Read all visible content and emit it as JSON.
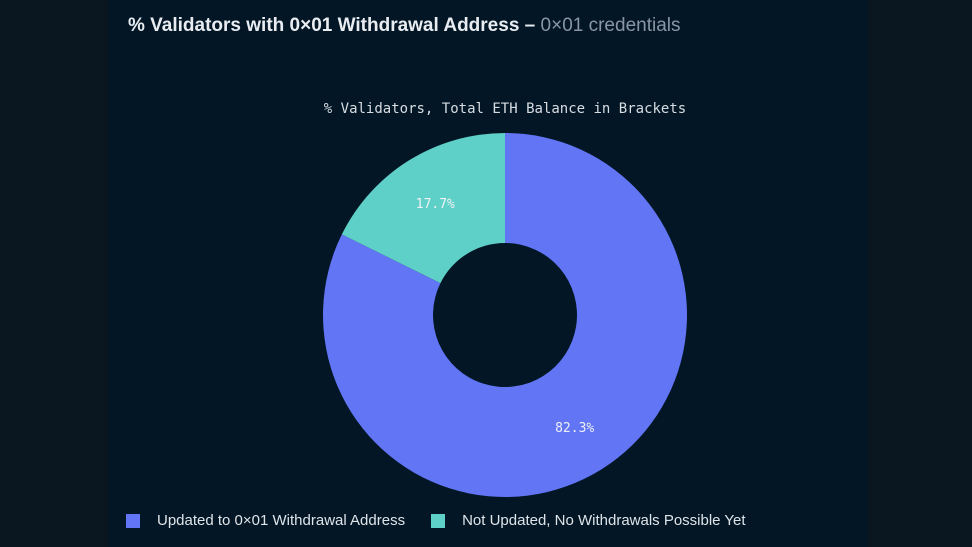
{
  "title": {
    "main": "% Validators with 0×01 Withdrawal Address",
    "separator": "–",
    "secondary": "0×01 credentials"
  },
  "chart_data": {
    "type": "pie",
    "donut": true,
    "title": "% Validators, Total ETH Balance in Brackets",
    "slices": [
      {
        "name": "Updated to 0×01 Withdrawal Address",
        "value": 82.3,
        "label": "82.3%",
        "color": "#6275f5"
      },
      {
        "name": "Not Updated, No Withdrawals Possible Yet",
        "value": 17.7,
        "label": "17.7%",
        "color": "#5fd0c7"
      }
    ],
    "start_angle_deg": 0,
    "direction": "clockwise",
    "legend": "bottom-left"
  },
  "colors": {
    "background": "#021625",
    "text": "#e9edf1",
    "muted": "#8a96a3"
  }
}
